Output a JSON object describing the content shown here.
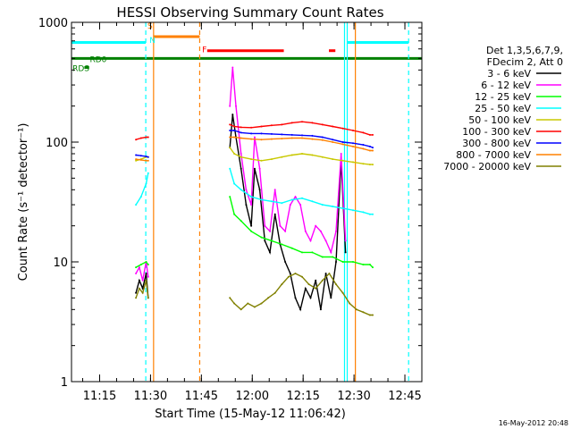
{
  "chart_data": {
    "type": "line",
    "title": "HESSI Observing Summary Count Rates",
    "xlabel": "Start Time (15-May-12 11:06:42)",
    "ylabel": "Count Rate (s⁻¹ detector⁻¹)",
    "x_unit": "minutes after 11:06:42 UT",
    "xlim": [
      0,
      103.3
    ],
    "ylim": [
      1,
      1000
    ],
    "y_scale": "log",
    "grid": false,
    "x_ticks": [
      {
        "label": "11:15",
        "value": 8.3
      },
      {
        "label": "11:30",
        "value": 23.3
      },
      {
        "label": "11:45",
        "value": 38.3
      },
      {
        "label": "12:00",
        "value": 53.3
      },
      {
        "label": "12:15",
        "value": 68.3
      },
      {
        "label": "12:30",
        "value": 83.3
      },
      {
        "label": "12:45",
        "value": 98.3
      }
    ],
    "y_ticks": [
      {
        "label": "1",
        "value": 1
      },
      {
        "label": "10",
        "value": 10
      },
      {
        "label": "100",
        "value": 100
      },
      {
        "label": "1000",
        "value": 1000
      }
    ],
    "legend_header": [
      "Det 1,3,5,6,7,9,",
      "FDecim 2, Att 0"
    ],
    "legend_position": "right",
    "series": [
      {
        "name": "3 - 6 keV",
        "color": "#000000",
        "x": [
          19.0,
          20.0,
          21.0,
          22.0,
          22.6,
          46.7,
          47.5,
          48.5,
          50.0,
          51.5,
          53.0,
          54.0,
          55.5,
          57.0,
          58.5,
          60.0,
          61.5,
          63.0,
          64.5,
          66.0,
          67.5,
          69.0,
          70.5,
          72.0,
          73.5,
          75.0,
          76.5,
          78.0,
          79.5,
          80.8
        ],
        "y": [
          5.5,
          7.0,
          6.0,
          8.0,
          5.0,
          90,
          170,
          110,
          60,
          30,
          20,
          60,
          40,
          15,
          12,
          25,
          14,
          10,
          8,
          5,
          4,
          6,
          5,
          7,
          4,
          8,
          5,
          10,
          70,
          12
        ]
      },
      {
        "name": "6 - 12 keV",
        "color": "#ff00ff",
        "x": [
          19.0,
          20.0,
          21.0,
          22.0,
          22.6,
          46.7,
          47.5,
          48.5,
          50.0,
          51.5,
          53.0,
          54.0,
          55.5,
          57.0,
          58.5,
          60.0,
          61.5,
          63.0,
          64.5,
          66.0,
          67.5,
          69.0,
          70.5,
          72.0,
          73.5,
          75.0,
          76.5,
          78.0,
          79.5,
          80.8
        ],
        "y": [
          8.0,
          9.0,
          7.0,
          10.0,
          7.5,
          200,
          420,
          200,
          80,
          40,
          30,
          110,
          60,
          20,
          18,
          40,
          20,
          18,
          30,
          35,
          30,
          18,
          15,
          20,
          18,
          15,
          12,
          18,
          80,
          15
        ]
      },
      {
        "name": "12 - 25 keV",
        "color": "#00ff00",
        "x": [
          19.0,
          20.5,
          22.0,
          22.6,
          46.7,
          48.0,
          50.0,
          53.0,
          56.0,
          59.0,
          62.0,
          65.0,
          68.0,
          71.0,
          74.0,
          77.0,
          80.0,
          83.0,
          86.0,
          88.0,
          88.8
        ],
        "y": [
          9.0,
          9.5,
          10.0,
          9.5,
          35,
          25,
          22,
          18,
          16,
          15,
          14,
          13,
          12,
          12,
          11,
          11,
          10,
          10,
          9.5,
          9.5,
          9
        ]
      },
      {
        "name": "25 - 50 keV",
        "color": "#00ffff",
        "x": [
          19.0,
          20.5,
          22.0,
          22.6,
          46.7,
          48.0,
          50.0,
          53.0,
          56.0,
          59.0,
          62.0,
          65.0,
          68.0,
          71.0,
          74.0,
          77.0,
          80.0,
          83.0,
          86.0,
          88.0,
          88.8
        ],
        "y": [
          30,
          35,
          45,
          55,
          60,
          45,
          40,
          35,
          33,
          32,
          31,
          33,
          34,
          32,
          30,
          29,
          28,
          27,
          26,
          25,
          25
        ]
      },
      {
        "name": "50 - 100 keV",
        "color": "#c8c800",
        "x": [
          19.0,
          20.5,
          22.0,
          22.6,
          46.7,
          48.0,
          50.0,
          53.0,
          56.0,
          59.0,
          62.0,
          65.0,
          68.0,
          71.0,
          74.0,
          77.0,
          80.0,
          83.0,
          86.0,
          88.0,
          88.8
        ],
        "y": [
          70,
          72,
          75,
          75,
          90,
          80,
          75,
          72,
          70,
          72,
          75,
          78,
          80,
          78,
          75,
          72,
          70,
          68,
          66,
          65,
          65
        ]
      },
      {
        "name": "100 - 300 keV",
        "color": "#ff0000",
        "x": [
          19.0,
          20.5,
          22.0,
          22.6,
          46.7,
          48.0,
          50.0,
          53.0,
          56.0,
          59.0,
          62.0,
          65.0,
          68.0,
          71.0,
          74.0,
          77.0,
          80.0,
          83.0,
          86.0,
          88.0,
          88.8
        ],
        "y": [
          105,
          108,
          110,
          110,
          140,
          135,
          133,
          132,
          135,
          138,
          140,
          145,
          148,
          145,
          140,
          135,
          130,
          125,
          120,
          115,
          115
        ]
      },
      {
        "name": "300 - 800 keV",
        "color": "#0000ff",
        "x": [
          19.0,
          20.5,
          22.0,
          22.6,
          46.7,
          48.0,
          50.0,
          53.0,
          56.0,
          59.0,
          62.0,
          65.0,
          68.0,
          71.0,
          74.0,
          77.0,
          80.0,
          83.0,
          86.0,
          88.0,
          88.8
        ],
        "y": [
          78,
          77,
          76,
          75,
          125,
          125,
          120,
          118,
          118,
          117,
          116,
          115,
          114,
          113,
          110,
          105,
          100,
          98,
          95,
          92,
          90
        ]
      },
      {
        "name": "800 - 7000 keV",
        "color": "#ff8000",
        "x": [
          19.0,
          20.5,
          22.0,
          22.6,
          46.7,
          48.0,
          50.0,
          53.0,
          56.0,
          59.0,
          62.0,
          65.0,
          68.0,
          71.0,
          74.0,
          77.0,
          80.0,
          83.0,
          86.0,
          88.0,
          88.8
        ],
        "y": [
          72,
          71,
          70,
          70,
          110,
          110,
          108,
          106,
          105,
          106,
          107,
          108,
          108,
          106,
          104,
          100,
          96,
          92,
          88,
          85,
          85
        ]
      },
      {
        "name": "7000 - 20000 keV",
        "color": "#808000",
        "x": [
          19.0,
          20.0,
          21.0,
          22.0,
          22.6,
          46.7,
          48.0,
          50.0,
          52.0,
          54.0,
          56.0,
          58.0,
          60.0,
          62.0,
          64.0,
          66.0,
          68.0,
          70.0,
          72.0,
          74.0,
          76.0,
          78.0,
          80.0,
          82.0,
          84.0,
          86.0,
          88.0,
          88.8
        ],
        "y": [
          5.0,
          6.0,
          5.5,
          7.0,
          5.0,
          5.0,
          4.5,
          4.0,
          4.5,
          4.2,
          4.5,
          5.0,
          5.5,
          6.5,
          7.5,
          8.0,
          7.5,
          6.5,
          6.0,
          7.0,
          8.0,
          6.5,
          5.5,
          4.5,
          4.0,
          3.8,
          3.6,
          3.6
        ]
      }
    ],
    "vertical_lines": [
      {
        "x": 21.9,
        "color": "#00ffff",
        "style": "dashed"
      },
      {
        "x": 24.2,
        "color": "#ff8000",
        "style": "solid"
      },
      {
        "x": 37.8,
        "color": "#ff8000",
        "style": "dashed"
      },
      {
        "x": 80.5,
        "color": "#00ffff",
        "style": "solid"
      },
      {
        "x": 81.3,
        "color": "#00ffff",
        "style": "solid"
      },
      {
        "x": 83.7,
        "color": "#ff8000",
        "style": "solid"
      },
      {
        "x": 99.4,
        "color": "#00ffff",
        "style": "dashed"
      }
    ],
    "flag_bars": [
      {
        "name": "night",
        "color": "#00ffff",
        "y": 680,
        "segments": [
          [
            0,
            21.9
          ],
          [
            81.3,
            99.4
          ]
        ]
      },
      {
        "name": "saa",
        "color": "#ff8000",
        "y": 760,
        "segments": [
          [
            24.2,
            37.8
          ]
        ]
      },
      {
        "name": "flare",
        "color": "#ff0000",
        "y": 580,
        "segments": [
          [
            40.0,
            62.6
          ],
          [
            75.9,
            77.8
          ]
        ]
      },
      {
        "name": "rd0",
        "color": "#008000",
        "y": 500,
        "segments": [
          [
            0,
            103.3
          ]
        ]
      },
      {
        "name": "rds",
        "color": "#008000",
        "y": 420,
        "segments": [
          [
            3.8,
            5.2
          ]
        ]
      }
    ],
    "annotations": [
      {
        "text": "RD0",
        "x": 5.4,
        "y": 500,
        "color": "#008000"
      },
      {
        "text": "RDS",
        "x": 0.3,
        "y": 420,
        "color": "#008000"
      },
      {
        "text": "S",
        "x": 22.4,
        "y": 950,
        "color": "#ff8000"
      },
      {
        "text": "N",
        "x": 23.0,
        "y": 720,
        "color": "#00ffff"
      },
      {
        "text": "F",
        "x": 38.5,
        "y": 600,
        "color": "#ff0000"
      }
    ]
  },
  "footer": {
    "timestamp": "16-May-2012 20:48"
  }
}
